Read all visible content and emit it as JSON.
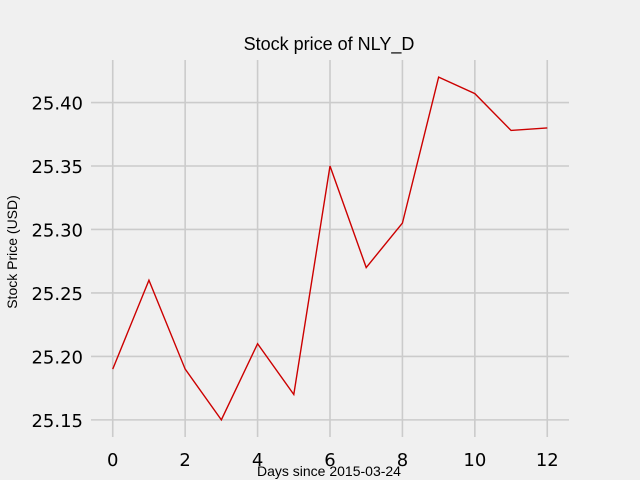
{
  "chart_data": {
    "type": "line",
    "title": "Stock price of NLY_D",
    "xlabel": "Days since 2015-03-24",
    "ylabel": "Stock Price (USD)",
    "x": [
      0,
      1,
      2,
      3,
      4,
      5,
      6,
      7,
      8,
      9,
      10,
      11,
      12
    ],
    "series": [
      {
        "values": [
          25.19,
          25.26,
          25.19,
          25.15,
          25.21,
          25.17,
          25.35,
          25.27,
          25.305,
          25.42,
          25.407,
          25.378,
          25.38
        ],
        "color": "#cc0000"
      }
    ],
    "xticks": [
      0,
      2,
      4,
      6,
      8,
      10,
      12
    ],
    "xtick_labels": [
      "0",
      "2",
      "4",
      "6",
      "8",
      "10",
      "12"
    ],
    "yticks": [
      25.15,
      25.2,
      25.25,
      25.3,
      25.35,
      25.4
    ],
    "ytick_labels": [
      "25.15",
      "25.20",
      "25.25",
      "25.30",
      "25.35",
      "25.40"
    ],
    "xlim": [
      -0.6,
      12.6
    ],
    "ylim": [
      25.1365,
      25.4335
    ],
    "grid": true,
    "background": "#f0f0f0",
    "grid_color": "#cbcbcb"
  }
}
